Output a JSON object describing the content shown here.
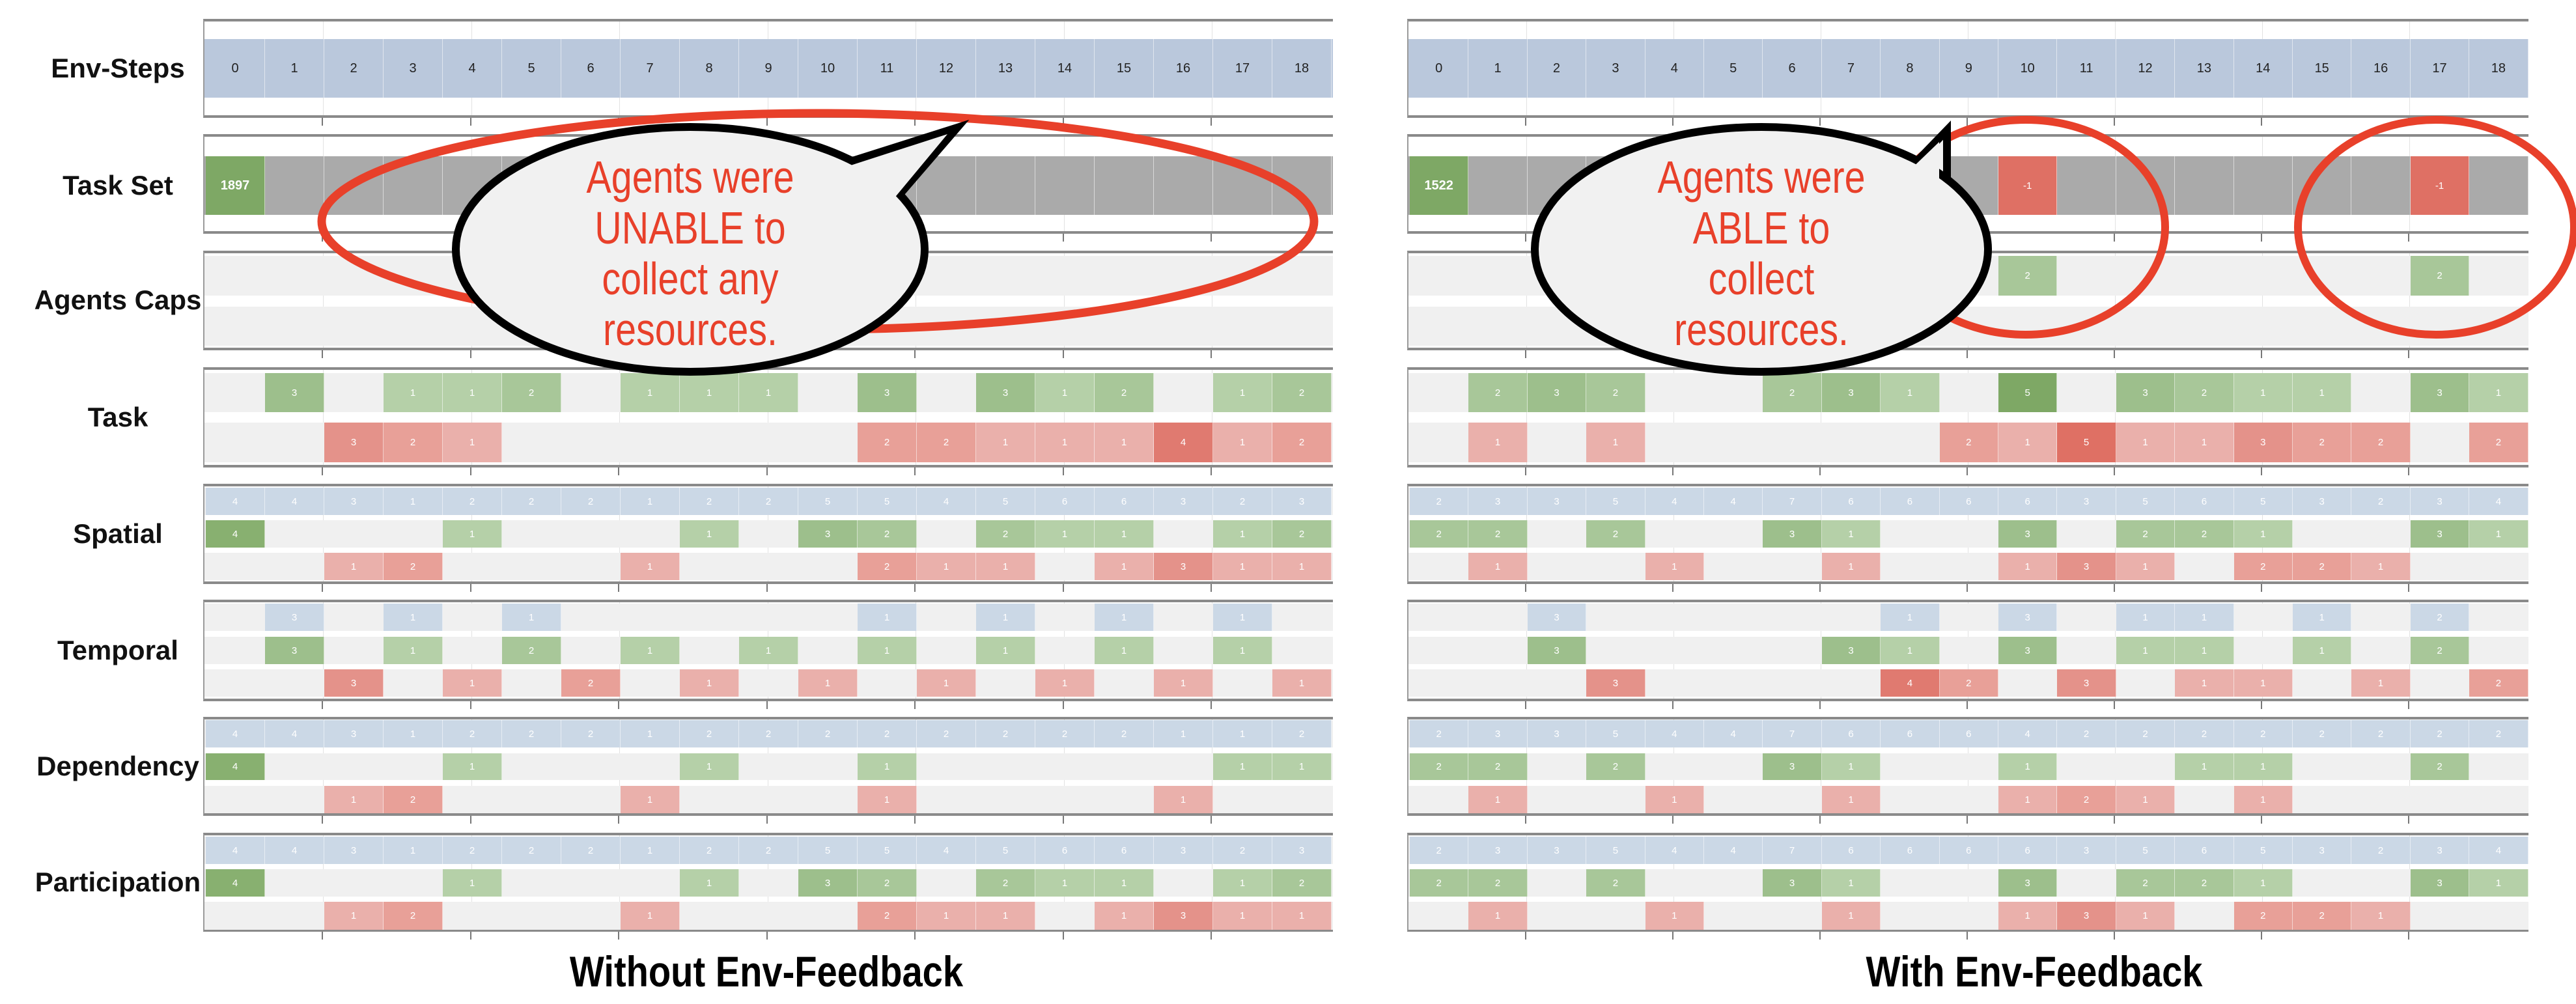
{
  "row_labels": [
    "Env-Steps",
    "Task Set",
    "Agents Caps",
    "Task",
    "Spatial",
    "Temporal",
    "Dependency",
    "Participation"
  ],
  "colors": {
    "env_band": "#bac8dc",
    "level_band": "#cbd8e6",
    "gray": "#aaaaaa",
    "row_bg": "#f0f0f0",
    "gain": "#9dbf8c",
    "loss": "#e8a098",
    "annotation_red": "#e8402a"
  },
  "panels": [
    {
      "caption": "Without Env-Feedback",
      "env_steps": [
        0,
        1,
        2,
        3,
        4,
        5,
        6,
        7,
        8,
        9,
        10,
        11,
        12,
        13,
        14,
        15,
        16,
        17,
        18
      ],
      "task_set": [
        1897,
        null,
        null,
        null,
        null,
        null,
        null,
        null,
        null,
        null,
        null,
        null,
        null,
        null,
        null,
        null,
        null,
        null,
        null
      ],
      "agents_caps": [
        [
          null,
          null,
          null,
          null,
          null,
          null,
          null,
          null,
          null,
          null,
          null,
          null,
          null,
          null,
          null,
          null,
          null,
          null,
          null
        ],
        [
          null,
          null,
          null,
          null,
          null,
          null,
          null,
          null,
          null,
          null,
          null,
          null,
          null,
          null,
          null,
          null,
          null,
          null,
          null
        ]
      ],
      "task": {
        "gain": [
          null,
          3,
          null,
          1,
          1,
          2,
          null,
          1,
          1,
          1,
          null,
          3,
          null,
          3,
          1,
          2,
          null,
          1,
          2
        ],
        "loss": [
          null,
          null,
          3,
          2,
          1,
          null,
          null,
          null,
          null,
          null,
          null,
          2,
          2,
          1,
          1,
          1,
          4,
          1,
          2
        ]
      },
      "spatial": {
        "level": [
          4,
          4,
          3,
          1,
          2,
          2,
          2,
          1,
          2,
          2,
          5,
          5,
          4,
          5,
          6,
          6,
          3,
          2,
          3
        ],
        "gain": [
          4,
          null,
          null,
          null,
          1,
          null,
          null,
          null,
          1,
          null,
          3,
          2,
          null,
          2,
          1,
          1,
          null,
          1,
          2
        ],
        "loss": [
          null,
          null,
          1,
          2,
          null,
          null,
          null,
          1,
          null,
          null,
          null,
          2,
          1,
          1,
          null,
          1,
          3,
          1,
          1
        ]
      },
      "temporal": {
        "level": [
          null,
          3,
          null,
          1,
          null,
          1,
          null,
          null,
          null,
          null,
          null,
          1,
          null,
          1,
          null,
          1,
          null,
          1,
          null
        ],
        "gain": [
          null,
          3,
          null,
          1,
          null,
          2,
          null,
          1,
          null,
          1,
          null,
          1,
          null,
          1,
          null,
          1,
          null,
          1,
          null
        ],
        "loss": [
          null,
          null,
          3,
          null,
          1,
          null,
          2,
          null,
          1,
          null,
          1,
          null,
          1,
          null,
          1,
          null,
          1,
          null,
          1
        ]
      },
      "dependency": {
        "level": [
          4,
          4,
          3,
          1,
          2,
          2,
          2,
          1,
          2,
          2,
          2,
          2,
          2,
          2,
          2,
          2,
          1,
          1,
          2
        ],
        "gain": [
          4,
          null,
          null,
          null,
          1,
          null,
          null,
          null,
          1,
          null,
          null,
          1,
          null,
          null,
          null,
          null,
          null,
          1,
          1
        ],
        "loss": [
          null,
          null,
          1,
          2,
          null,
          null,
          null,
          1,
          null,
          null,
          null,
          1,
          null,
          null,
          null,
          null,
          1,
          null,
          null
        ]
      },
      "participation": {
        "level": [
          4,
          4,
          3,
          1,
          2,
          2,
          2,
          1,
          2,
          2,
          5,
          5,
          4,
          5,
          6,
          6,
          3,
          2,
          3
        ],
        "gain": [
          4,
          null,
          null,
          null,
          1,
          null,
          null,
          null,
          1,
          null,
          3,
          2,
          null,
          2,
          1,
          1,
          null,
          1,
          2
        ],
        "loss": [
          null,
          null,
          1,
          2,
          null,
          null,
          null,
          1,
          null,
          null,
          null,
          2,
          1,
          1,
          null,
          1,
          3,
          1,
          1
        ]
      },
      "callout": [
        "Agents were",
        "UNABLE to",
        "collect any",
        "resources."
      ]
    },
    {
      "caption": "With Env-Feedback",
      "env_steps": [
        0,
        1,
        2,
        3,
        4,
        5,
        6,
        7,
        8,
        9,
        10,
        11,
        12,
        13,
        14,
        15,
        16,
        17,
        18
      ],
      "task_set": [
        1522,
        null,
        null,
        null,
        null,
        null,
        null,
        null,
        null,
        null,
        -1,
        null,
        null,
        null,
        null,
        null,
        null,
        -1,
        null
      ],
      "agents_caps": [
        [
          null,
          null,
          null,
          null,
          null,
          null,
          null,
          null,
          null,
          null,
          2,
          null,
          null,
          null,
          null,
          null,
          null,
          2,
          null
        ],
        [
          null,
          null,
          null,
          null,
          null,
          null,
          null,
          null,
          null,
          null,
          null,
          null,
          null,
          null,
          null,
          null,
          null,
          null,
          null
        ]
      ],
      "task": {
        "gain": [
          null,
          2,
          3,
          2,
          null,
          null,
          2,
          3,
          1,
          null,
          5,
          null,
          3,
          2,
          1,
          1,
          null,
          3,
          1
        ],
        "loss": [
          null,
          1,
          null,
          1,
          null,
          null,
          null,
          null,
          null,
          2,
          1,
          5,
          1,
          1,
          3,
          2,
          2,
          null,
          2
        ]
      },
      "spatial": {
        "level": [
          2,
          3,
          3,
          5,
          4,
          4,
          7,
          6,
          6,
          6,
          6,
          3,
          5,
          6,
          5,
          3,
          2,
          3,
          4
        ],
        "gain": [
          2,
          2,
          null,
          2,
          null,
          null,
          3,
          1,
          null,
          null,
          3,
          null,
          2,
          2,
          1,
          null,
          null,
          3,
          1
        ],
        "loss": [
          null,
          1,
          null,
          null,
          1,
          null,
          null,
          1,
          null,
          null,
          1,
          3,
          1,
          null,
          2,
          2,
          1,
          null,
          null
        ]
      },
      "temporal": {
        "level": [
          null,
          null,
          3,
          null,
          null,
          null,
          null,
          null,
          1,
          null,
          3,
          null,
          1,
          1,
          null,
          1,
          null,
          2,
          null
        ],
        "gain": [
          null,
          null,
          3,
          null,
          null,
          null,
          null,
          3,
          1,
          null,
          3,
          null,
          1,
          1,
          null,
          1,
          null,
          2,
          null
        ],
        "loss": [
          null,
          null,
          null,
          3,
          null,
          null,
          null,
          null,
          4,
          2,
          null,
          3,
          null,
          1,
          1,
          null,
          1,
          null,
          2
        ]
      },
      "dependency": {
        "level": [
          2,
          3,
          3,
          5,
          4,
          4,
          7,
          6,
          6,
          6,
          4,
          2,
          2,
          2,
          2,
          2,
          2,
          2,
          2
        ],
        "gain": [
          2,
          2,
          null,
          2,
          null,
          null,
          3,
          1,
          null,
          null,
          1,
          null,
          null,
          1,
          1,
          null,
          null,
          2,
          null
        ],
        "loss": [
          null,
          1,
          null,
          null,
          1,
          null,
          null,
          1,
          null,
          null,
          1,
          2,
          1,
          null,
          1,
          null,
          null,
          null,
          null
        ]
      },
      "participation": {
        "level": [
          2,
          3,
          3,
          5,
          4,
          4,
          7,
          6,
          6,
          6,
          6,
          3,
          5,
          6,
          5,
          3,
          2,
          3,
          4
        ],
        "gain": [
          2,
          2,
          null,
          2,
          null,
          null,
          3,
          1,
          null,
          null,
          3,
          null,
          2,
          2,
          1,
          null,
          null,
          3,
          1
        ],
        "loss": [
          null,
          1,
          null,
          null,
          1,
          null,
          null,
          1,
          null,
          null,
          1,
          3,
          1,
          null,
          2,
          2,
          1,
          null,
          null
        ]
      },
      "callout": [
        "Agents were",
        "ABLE to",
        "collect",
        "resources."
      ]
    }
  ]
}
